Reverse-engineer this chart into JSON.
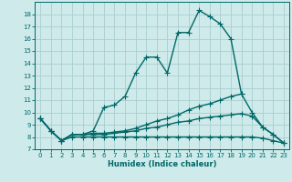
{
  "xlabel": "Humidex (Indice chaleur)",
  "bg_color": "#ceeaea",
  "grid_color": "#aacece",
  "line_color": "#006868",
  "xlim": [
    -0.5,
    23.5
  ],
  "ylim": [
    7,
    19
  ],
  "xticks": [
    0,
    1,
    2,
    3,
    4,
    5,
    6,
    7,
    8,
    9,
    10,
    11,
    12,
    13,
    14,
    15,
    16,
    17,
    18,
    19,
    20,
    21,
    22,
    23
  ],
  "yticks": [
    7,
    8,
    9,
    10,
    11,
    12,
    13,
    14,
    15,
    16,
    17,
    18
  ],
  "curves": [
    {
      "x": [
        0,
        1,
        2,
        3,
        4,
        5,
        6,
        7,
        8,
        9,
        10,
        11,
        12,
        13,
        14,
        15,
        16,
        17,
        18,
        19,
        20,
        21,
        22,
        23
      ],
      "y": [
        9.5,
        8.5,
        7.7,
        8.2,
        8.2,
        8.5,
        10.4,
        10.6,
        11.3,
        13.2,
        14.5,
        14.5,
        13.2,
        16.5,
        16.5,
        18.3,
        17.8,
        17.2,
        16.0,
        11.5,
        null,
        null,
        null,
        null
      ]
    },
    {
      "x": [
        0,
        1,
        2,
        3,
        4,
        5,
        6,
        7,
        8,
        9,
        10,
        11,
        12,
        13,
        14,
        15,
        16,
        17,
        18,
        19,
        20,
        21,
        22,
        23
      ],
      "y": [
        9.5,
        8.5,
        7.7,
        8.2,
        8.2,
        8.3,
        8.3,
        8.4,
        8.5,
        8.7,
        9.0,
        9.3,
        9.5,
        9.8,
        10.2,
        10.5,
        10.7,
        11.0,
        11.3,
        11.5,
        10.0,
        8.8,
        8.2,
        7.5
      ]
    },
    {
      "x": [
        0,
        1,
        2,
        3,
        4,
        5,
        6,
        7,
        8,
        9,
        10,
        11,
        12,
        13,
        14,
        15,
        16,
        17,
        18,
        19,
        20,
        21,
        22,
        23
      ],
      "y": [
        9.5,
        8.5,
        7.7,
        8.2,
        8.2,
        8.2,
        8.2,
        8.3,
        8.4,
        8.5,
        8.7,
        8.8,
        9.0,
        9.2,
        9.3,
        9.5,
        9.6,
        9.7,
        9.8,
        9.9,
        9.7,
        8.8,
        8.2,
        7.5
      ]
    },
    {
      "x": [
        0,
        1,
        2,
        3,
        4,
        5,
        6,
        7,
        8,
        9,
        10,
        11,
        12,
        13,
        14,
        15,
        16,
        17,
        18,
        19,
        20,
        21,
        22,
        23
      ],
      "y": [
        9.5,
        8.5,
        7.7,
        8.0,
        8.0,
        8.0,
        8.0,
        8.0,
        8.0,
        8.0,
        8.0,
        8.0,
        8.0,
        8.0,
        8.0,
        8.0,
        8.0,
        8.0,
        8.0,
        8.0,
        8.0,
        7.9,
        7.7,
        7.5
      ]
    }
  ],
  "marker": "+",
  "markersize": 4,
  "linewidth": 1.0,
  "tick_fontsize": 5,
  "xlabel_fontsize": 6,
  "fig_width": 3.2,
  "fig_height": 2.0,
  "dpi": 100
}
